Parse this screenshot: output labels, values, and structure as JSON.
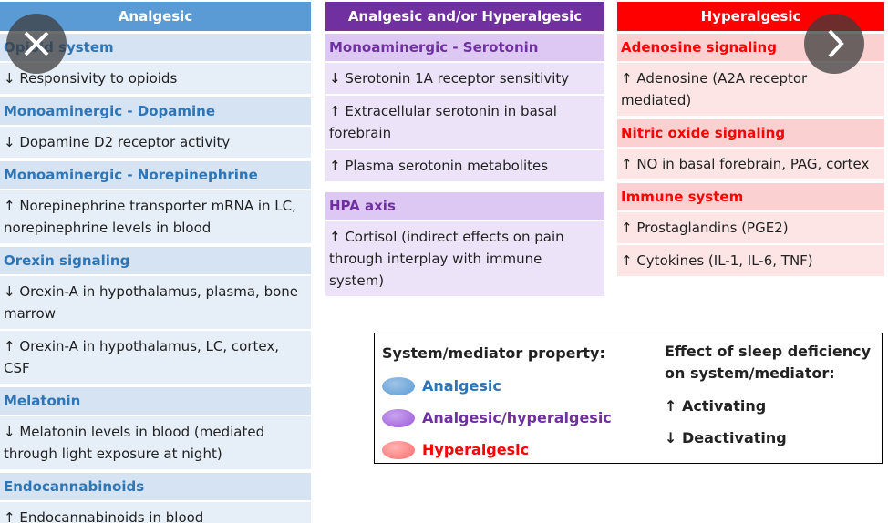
{
  "columns": [
    {
      "header": "Analgesic",
      "groups": [
        {
          "title": "Opioid system",
          "items": [
            "↓ Responsivity to opioids"
          ]
        },
        {
          "title": "Monoaminergic - Dopamine",
          "items": [
            "↓ Dopamine D2 receptor activity"
          ]
        },
        {
          "title": "Monoaminergic - Norepinephrine",
          "items": [
            "↑ Norepinephrine transporter mRNA in LC, norepinephrine levels in blood"
          ]
        },
        {
          "title": "Orexin signaling",
          "items": [
            "↓ Orexin-A in hypothalamus, plasma, bone marrow",
            "↑ Orexin-A in hypothalamus, LC, cortex, CSF"
          ]
        },
        {
          "title": "Melatonin",
          "items": [
            "↓ Melatonin levels in blood (mediated through light exposure at night)"
          ]
        },
        {
          "title": "Endocannabinoids",
          "items": [
            "↑ Endocannabinoids in blood"
          ]
        }
      ]
    },
    {
      "header": "Analgesic and/or Hyperalgesic",
      "groups": [
        {
          "title": "Monoaminergic - Serotonin",
          "items": [
            "↓ Serotonin 1A receptor sensitivity",
            "↑ Extracellular serotonin in basal forebrain",
            "↑ Plasma serotonin metabolites"
          ]
        },
        {
          "title": "HPA axis",
          "items": [
            "↑ Cortisol (indirect effects on pain through interplay with immune system)"
          ]
        }
      ]
    },
    {
      "header": "Hyperalgesic",
      "groups": [
        {
          "title": "Adenosine signaling",
          "items": [
            "↑ Adenosine (A2A receptor mediated)"
          ]
        },
        {
          "title": "Nitric oxide signaling",
          "items": [
            "↑ NO in basal forebrain, PAG, cortex"
          ]
        },
        {
          "title": "Immune system",
          "items": [
            "↑ Prostaglandins (PGE2)",
            "↑ Cytokines (IL-1, IL-6, TNF)"
          ]
        }
      ]
    }
  ],
  "legend": {
    "property_title": "System/mediator property:",
    "properties": [
      "Analgesic",
      "Analgesic/hyperalgesic",
      "Hyperalgesic"
    ],
    "effect_title": "Effect of sleep deficiency on system/mediator:",
    "effects": [
      "↑ Activating",
      "↓ Deactivating"
    ]
  }
}
